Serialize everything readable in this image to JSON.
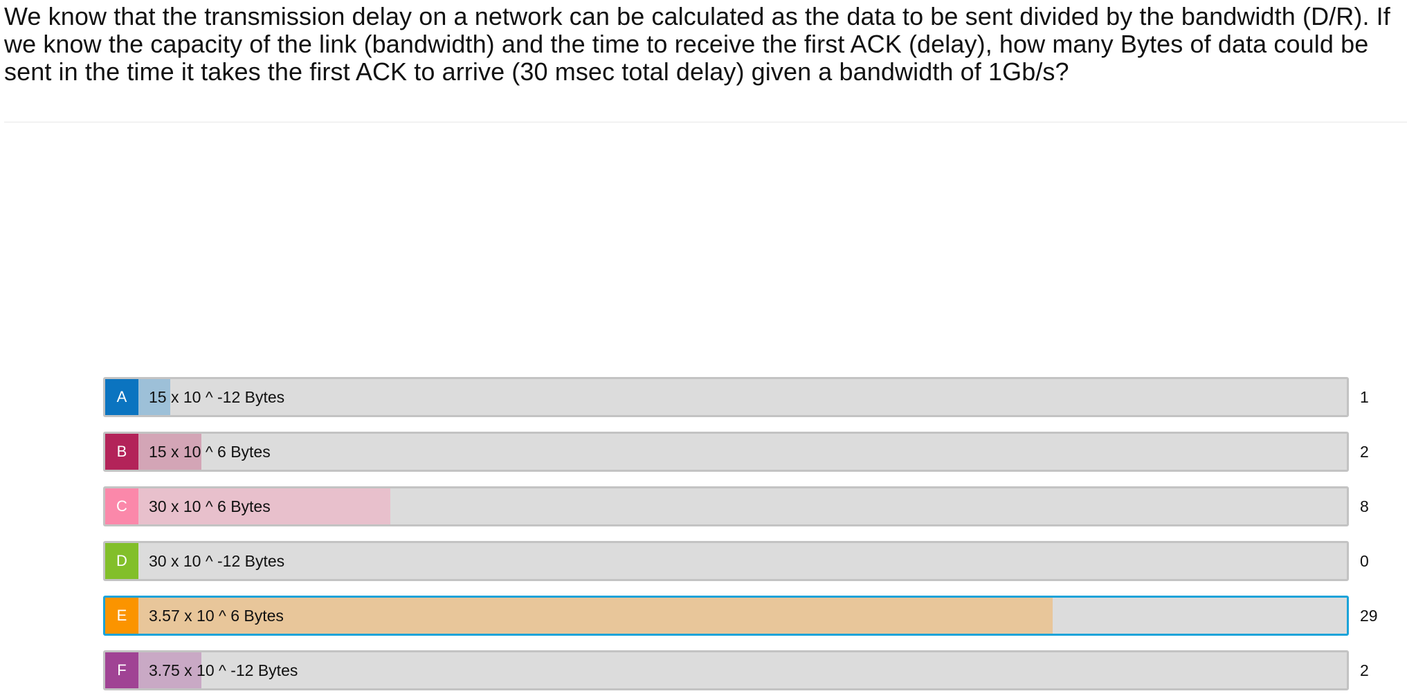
{
  "question": {
    "text": "We know that the transmission delay on a network can be calculated as the data to be sent divided by the bandwidth (D/R). If we know the capacity of the link (bandwidth) and the time to receive the first ACK (delay), how many Bytes of data could be sent in the time it takes the first ACK to arrive (30 msec total delay) given a bandwidth of 1Gb/s?"
  },
  "choices": [
    {
      "letter": "A",
      "label": "15 x 10 ^ -12 Bytes",
      "count": "1",
      "votes": 1,
      "color": "#0b74c0",
      "fill_color": "#9dc0d8",
      "selected": false
    },
    {
      "letter": "B",
      "label": "15 x 10 ^ 6 Bytes",
      "count": "2",
      "votes": 2,
      "color": "#b32359",
      "fill_color": "#d3a5b6",
      "selected": false
    },
    {
      "letter": "C",
      "label": "30 x 10 ^ 6 Bytes",
      "count": "8",
      "votes": 8,
      "color": "#fb88aa",
      "fill_color": "#e8c0cc",
      "selected": false
    },
    {
      "letter": "D",
      "label": "30 x 10 ^ -12 Bytes",
      "count": "0",
      "votes": 0,
      "color": "#82bf2a",
      "fill_color": "#c8dfa8",
      "selected": false
    },
    {
      "letter": "E",
      "label": "3.57 x 10 ^ 6 Bytes",
      "count": "29",
      "votes": 29,
      "color": "#fb9400",
      "fill_color": "#e8c69a",
      "selected": true
    },
    {
      "letter": "F",
      "label": "3.75 x 10 ^ -12 Bytes",
      "count": "2",
      "votes": 2,
      "color": "#a04394",
      "fill_color": "#c9a9c5",
      "selected": false
    }
  ],
  "max_votes": 29
}
